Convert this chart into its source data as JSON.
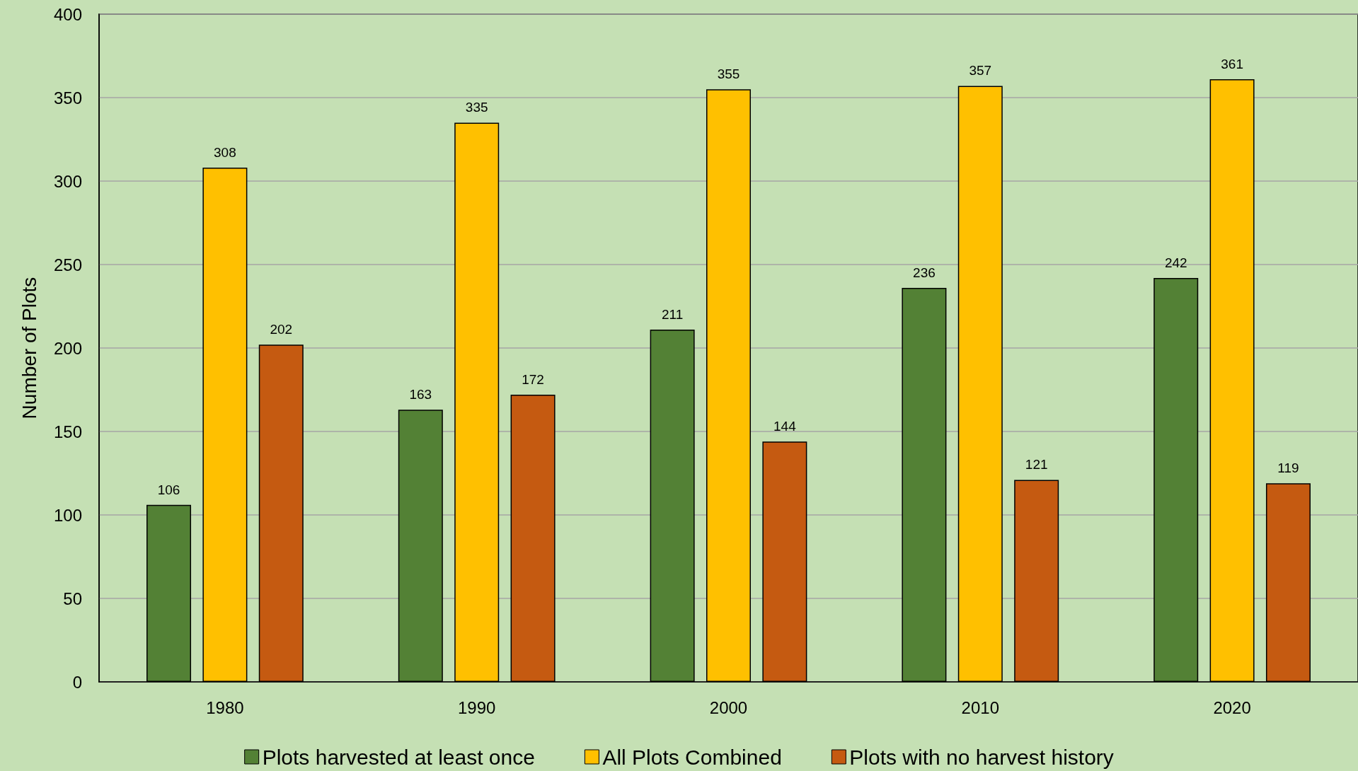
{
  "chart_data": {
    "type": "bar",
    "ylabel": "Number of Plots",
    "categories": [
      "1980",
      "1990",
      "2000",
      "2010",
      "2020"
    ],
    "series": [
      {
        "name": "Plots harvested at least once",
        "color": "#538135",
        "values": [
          106,
          163,
          211,
          236,
          242
        ]
      },
      {
        "name": "All Plots Combined",
        "color": "#ffc000",
        "values": [
          308,
          335,
          355,
          357,
          361
        ]
      },
      {
        "name": "Plots with no harvest history",
        "color": "#c55a11",
        "values": [
          202,
          172,
          144,
          121,
          119
        ]
      }
    ],
    "ylim": [
      0,
      400
    ],
    "yticks": [
      0,
      50,
      100,
      150,
      200,
      250,
      300,
      350,
      400
    ],
    "grid": "y",
    "legend": "bottom",
    "data_labels": true
  }
}
